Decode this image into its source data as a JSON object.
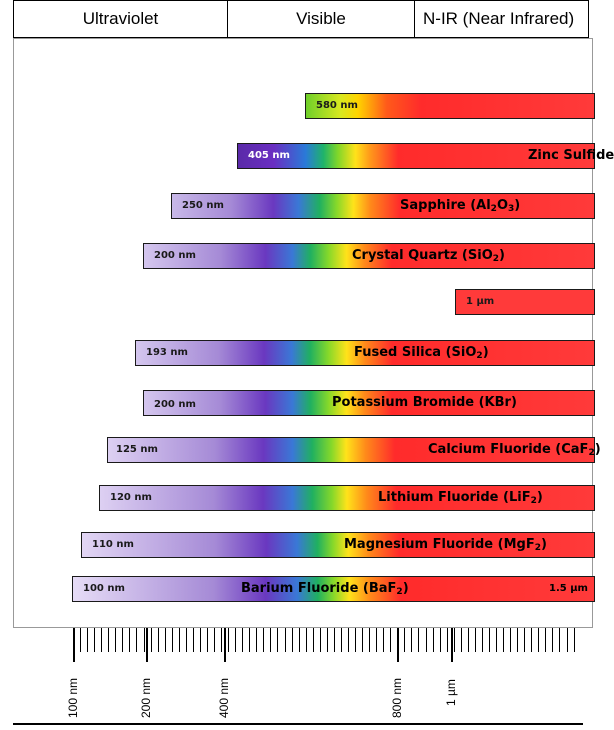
{
  "header": {
    "ultraviolet": "Ultraviolet",
    "visible": "Visible",
    "nir": "N-IR (Near Infrared)"
  },
  "materials": [
    {
      "short": "580 nm",
      "name": "",
      "sub": "",
      "after": "",
      "end": ""
    },
    {
      "short": "405 nm",
      "name": "Zinc Sulfide",
      "sub": "",
      "after": "",
      "end": ""
    },
    {
      "short": "250 nm",
      "name": "Sapphire (Al",
      "sub": "2",
      "after": "O",
      "sub2": "3",
      "after2": ")",
      "end": ""
    },
    {
      "short": "200 nm",
      "name": "Crystal Quartz (SiO",
      "sub": "2",
      "after": ")",
      "end": ""
    },
    {
      "short": "1 µm",
      "name": "",
      "sub": "",
      "after": "",
      "end": ""
    },
    {
      "short": "193 nm",
      "name": "Fused Silica (SiO",
      "sub": "2",
      "after": ")",
      "end": ""
    },
    {
      "short": "200 nm",
      "name": "Potassium Bromide (KBr)",
      "sub": "",
      "after": "",
      "end": ""
    },
    {
      "short": "125 nm",
      "name": "Calcium Fluoride (CaF",
      "sub": "2",
      "after": ")",
      "end": ""
    },
    {
      "short": "120 nm",
      "name": "Lithium Fluoride (LiF",
      "sub": "2",
      "after": ")",
      "end": ""
    },
    {
      "short": "110 nm",
      "name": "Magnesium Fluoride (MgF",
      "sub": "2",
      "after": ")",
      "end": ""
    },
    {
      "short": "100 nm",
      "name": "Barium Fluoride (BaF",
      "sub": "2",
      "after": ")",
      "end": "1.5 µm"
    }
  ],
  "axis": {
    "labels": [
      "100 nm",
      "200 nm",
      "400 nm",
      "800 nm",
      "1 µm"
    ]
  }
}
